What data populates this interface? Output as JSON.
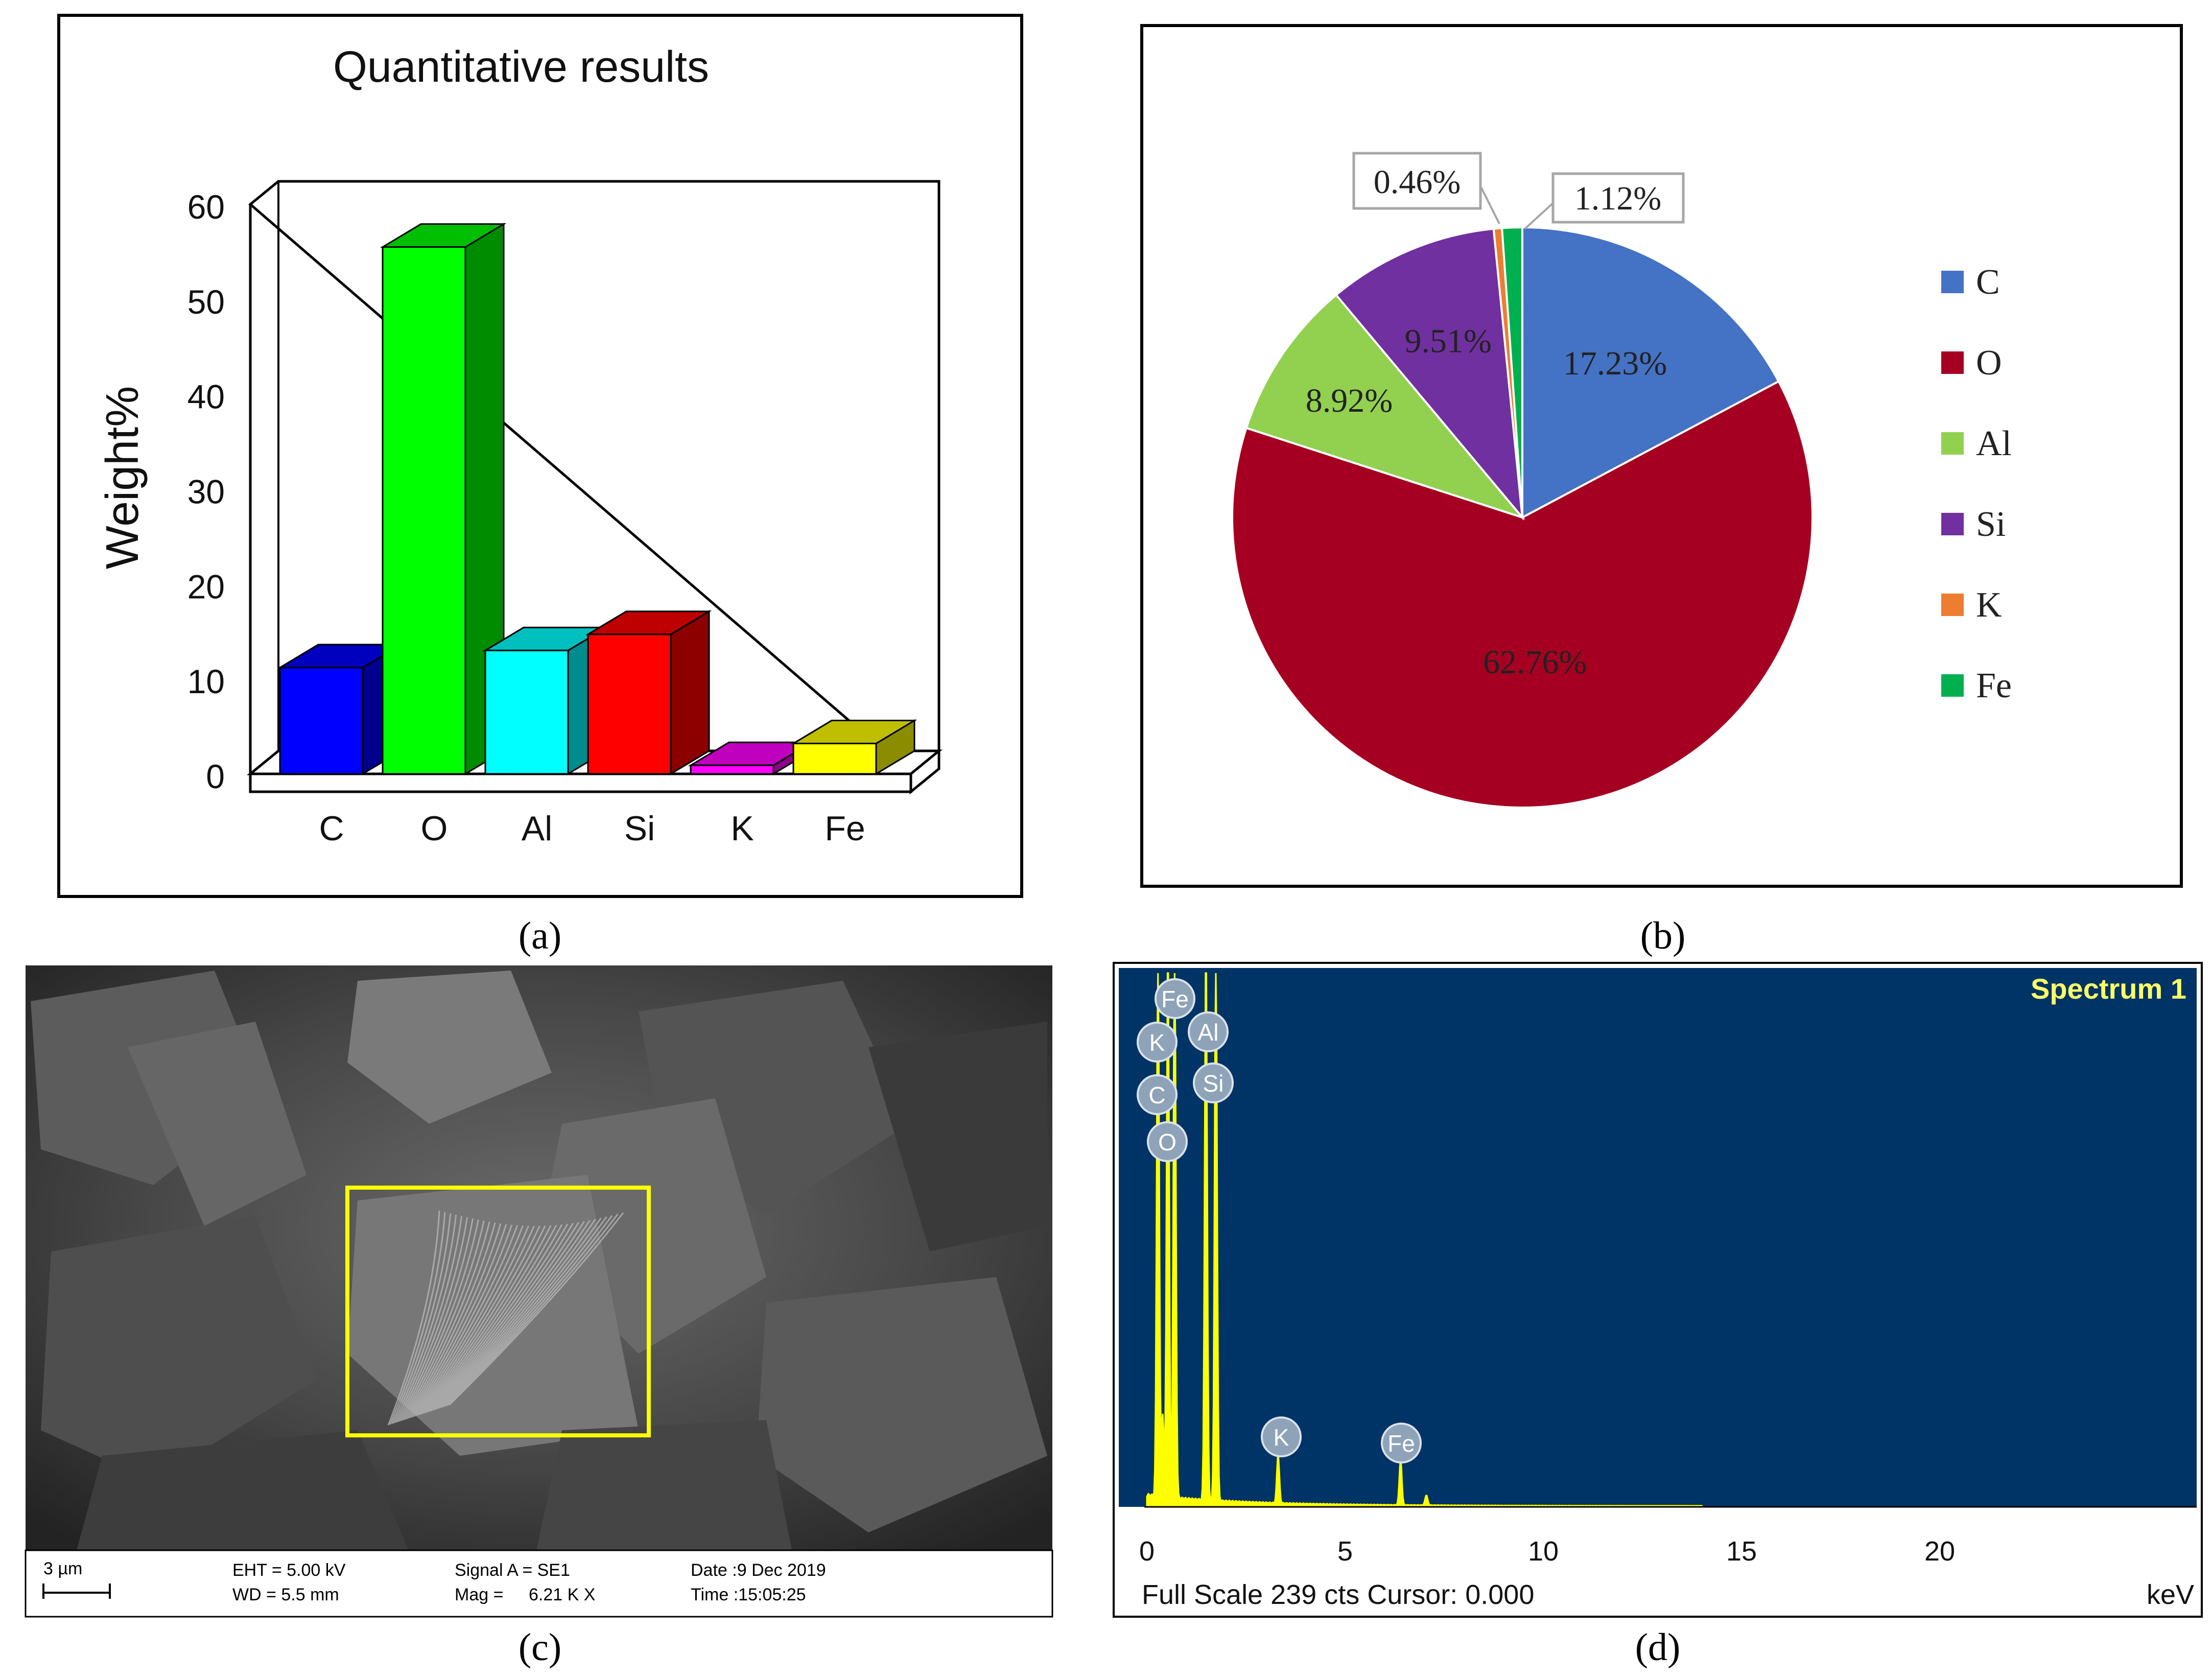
{
  "panel_a": {
    "label": "(a)",
    "chart_data": {
      "type": "bar",
      "title": "Quantitative results",
      "ylabel": "Weight%",
      "xlabel": "",
      "categories": [
        "C",
        "O",
        "Al",
        "Si",
        "K",
        "Fe"
      ],
      "values": [
        11.2,
        55.5,
        13.0,
        14.7,
        0.9,
        3.2
      ],
      "ylim": [
        0,
        60
      ],
      "yticks": [
        "0",
        "10",
        "20",
        "30",
        "40",
        "50",
        "60"
      ],
      "colors": [
        "#0000ff",
        "#00ff00",
        "#00ffff",
        "#ff0000",
        "#ff00ff",
        "#ffff00"
      ],
      "style": "3d"
    }
  },
  "panel_b": {
    "label": "(b)",
    "chart_data": {
      "type": "pie",
      "categories": [
        "C",
        "O",
        "Al",
        "Si",
        "K",
        "Fe"
      ],
      "values": [
        17.23,
        62.76,
        8.92,
        9.51,
        0.46,
        1.12
      ],
      "data_labels": [
        "17.23%",
        "62.76%",
        "8.92%",
        "9.51%",
        "0.46%",
        "1.12%"
      ],
      "colors": [
        "#4472c4",
        "#a50021",
        "#92d050",
        "#7030a0",
        "#ed7d31",
        "#00b050"
      ],
      "legend_position": "right"
    }
  },
  "panel_c": {
    "label": "(c)",
    "info": {
      "scale_bar": "3 µm",
      "eht": "EHT = 5.00 kV",
      "wd": "WD = 5.5 mm",
      "signal": "Signal A = SE1",
      "mag_label": "Mag =",
      "mag_value": "6.21 K X",
      "date": "Date :9 Dec 2019",
      "time": "Time :15:05:25"
    },
    "highlight_color": "#ffff00"
  },
  "panel_d": {
    "label": "(d)",
    "title": "Spectrum 1",
    "footer": "Full Scale 239 cts Cursor: 0.000",
    "unit": "keV",
    "x_ticks": [
      "0",
      "5",
      "10",
      "15",
      "20"
    ],
    "background_color": "#003366",
    "trace_color": "#ffff00",
    "peak_labels": [
      "Fe",
      "K",
      "C",
      "O",
      "Al",
      "Si",
      "K",
      "Fe"
    ]
  }
}
